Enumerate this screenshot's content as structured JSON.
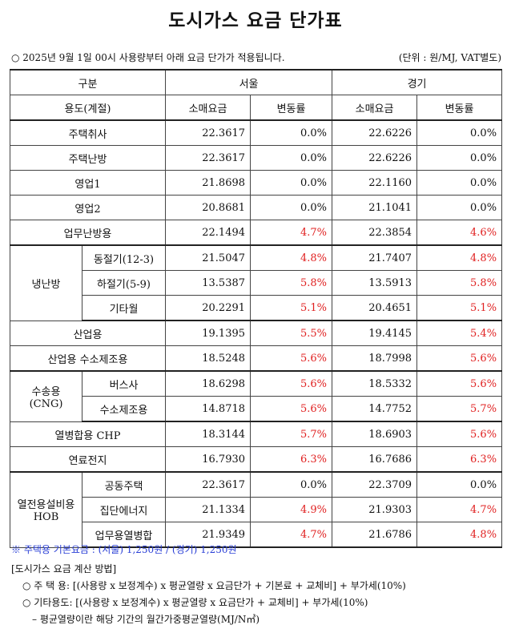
{
  "title": "도시가스 요금 단가표",
  "notice": {
    "text": "○ 2025년 9월 1일 00시 사용량부터 아래 요금 단가가 적용됩니다.",
    "unit": "(단위 : 원/MJ, VAT별도)"
  },
  "table": {
    "header": {
      "category": "구분",
      "seoul": "서울",
      "gyeonggi": "경기",
      "usage": "용도(계절)",
      "retail": "소매요금",
      "change": "변동률"
    },
    "rows": [
      {
        "label": "주택취사",
        "seoul_rate": "22.3617",
        "seoul_change": "0.0%",
        "gg_rate": "22.6226",
        "gg_change": "0.0%"
      },
      {
        "label": "주택난방",
        "seoul_rate": "22.3617",
        "seoul_change": "0.0%",
        "gg_rate": "22.6226",
        "gg_change": "0.0%"
      },
      {
        "label": "영업1",
        "seoul_rate": "21.8698",
        "seoul_change": "0.0%",
        "gg_rate": "22.1160",
        "gg_change": "0.0%"
      },
      {
        "label": "영업2",
        "seoul_rate": "20.8681",
        "seoul_change": "0.0%",
        "gg_rate": "21.1041",
        "gg_change": "0.0%"
      },
      {
        "label": "업무난방용",
        "seoul_rate": "22.1494",
        "seoul_change": "4.7%",
        "gg_rate": "22.3854",
        "gg_change": "4.6%"
      },
      {
        "group": "냉난방",
        "label": "동절기(12-3)",
        "seoul_rate": "21.5047",
        "seoul_change": "4.8%",
        "gg_rate": "21.7407",
        "gg_change": "4.8%"
      },
      {
        "label": "하절기(5-9)",
        "seoul_rate": "13.5387",
        "seoul_change": "5.8%",
        "gg_rate": "13.5913",
        "gg_change": "5.8%"
      },
      {
        "label": "기타월",
        "seoul_rate": "20.2291",
        "seoul_change": "5.1%",
        "gg_rate": "20.4651",
        "gg_change": "5.1%"
      },
      {
        "label": "산업용",
        "seoul_rate": "19.1395",
        "seoul_change": "5.5%",
        "gg_rate": "19.4145",
        "gg_change": "5.4%"
      },
      {
        "label": "산업용 수소제조용",
        "seoul_rate": "18.5248",
        "seoul_change": "5.6%",
        "gg_rate": "18.7998",
        "gg_change": "5.6%"
      },
      {
        "group_line1": "수송용",
        "group_line2": "(CNG)",
        "label": "버스사",
        "seoul_rate": "18.6298",
        "seoul_change": "5.6%",
        "gg_rate": "18.5332",
        "gg_change": "5.6%"
      },
      {
        "label": "수소제조용",
        "seoul_rate": "14.8718",
        "seoul_change": "5.6%",
        "gg_rate": "14.7752",
        "gg_change": "5.7%"
      },
      {
        "label": "열병합용 CHP",
        "seoul_rate": "18.3144",
        "seoul_change": "5.7%",
        "gg_rate": "18.6903",
        "gg_change": "5.6%"
      },
      {
        "label": "연료전지",
        "seoul_rate": "16.7930",
        "seoul_change": "6.3%",
        "gg_rate": "16.7686",
        "gg_change": "6.3%"
      },
      {
        "group_line1": "열전용설비용",
        "group_line2": "HOB",
        "label": "공동주택",
        "seoul_rate": "22.3617",
        "seoul_change": "0.0%",
        "gg_rate": "22.3709",
        "gg_change": "0.0%"
      },
      {
        "label": "집단에너지",
        "seoul_rate": "21.1334",
        "seoul_change": "4.9%",
        "gg_rate": "21.9303",
        "gg_change": "4.7%"
      },
      {
        "label": "업무용열병합",
        "seoul_rate": "21.9349",
        "seoul_change": "4.7%",
        "gg_rate": "21.6786",
        "gg_change": "4.8%"
      }
    ]
  },
  "footnote": "※ 주택용 기본요금 : (서울) 1,250원 / (경기) 1,250원",
  "method": {
    "heading": "[도시가스 요금 계산 방법]",
    "residential": "○ 주 택 용: [(사용량 x 보정계수) x 평균열량 x 요금단가 + 기본료 + 교체비] + 부가세(10%)",
    "other": "○ 기타용도: [(사용량 x 보정계수) x 평균열량 x 요금단가 + 교체비] + 부가세(10%)",
    "note": "– 평균열량이란 해당 기간의 월간가중평균열량(MJ/N㎥)"
  },
  "colors": {
    "change_up": "#e02020",
    "footnote": "#2a3fd6"
  }
}
